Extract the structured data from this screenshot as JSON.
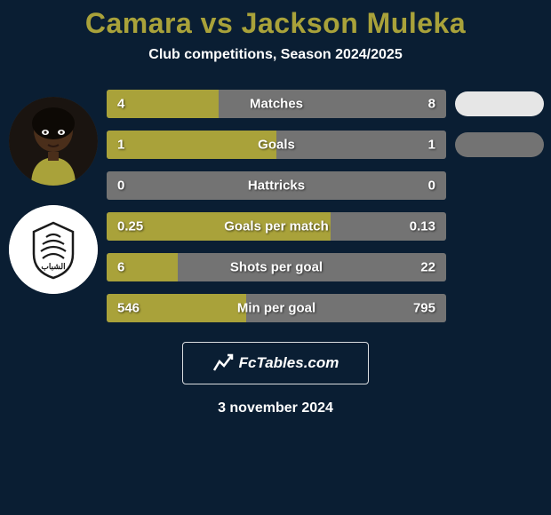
{
  "background_color": "#0a1e33",
  "text_color": "#ffffff",
  "title": {
    "text": "Camara vs Jackson Muleka",
    "color": "#a9a23a",
    "fontsize": 32
  },
  "subtitle": "Club competitions, Season 2024/2025",
  "left_col": {
    "player_avatar_bg": "#2a2420",
    "club_avatar_bg": "#ffffff",
    "club_name": "Al Shabab"
  },
  "bars_common": {
    "left_fill_color": "#a9a23a",
    "base_color": "#737373",
    "height": 32,
    "label_fontsize": 15
  },
  "bars": [
    {
      "label": "Matches",
      "left": "4",
      "right": "8",
      "left_pct": 33,
      "right_pct": 0,
      "pill_color": "#e6e6e6"
    },
    {
      "label": "Goals",
      "left": "1",
      "right": "1",
      "left_pct": 50,
      "right_pct": 0,
      "pill_color": "#737373"
    },
    {
      "label": "Hattricks",
      "left": "0",
      "right": "0",
      "left_pct": 0,
      "right_pct": 0,
      "pill_color": null
    },
    {
      "label": "Goals per match",
      "left": "0.25",
      "right": "0.13",
      "left_pct": 66,
      "right_pct": 0,
      "pill_color": null
    },
    {
      "label": "Shots per goal",
      "left": "6",
      "right": "22",
      "left_pct": 21,
      "right_pct": 0,
      "pill_color": null
    },
    {
      "label": "Min per goal",
      "left": "546",
      "right": "795",
      "left_pct": 41,
      "right_pct": 0,
      "pill_color": null
    }
  ],
  "attribution": "FcTables.com",
  "date": "3 november 2024"
}
